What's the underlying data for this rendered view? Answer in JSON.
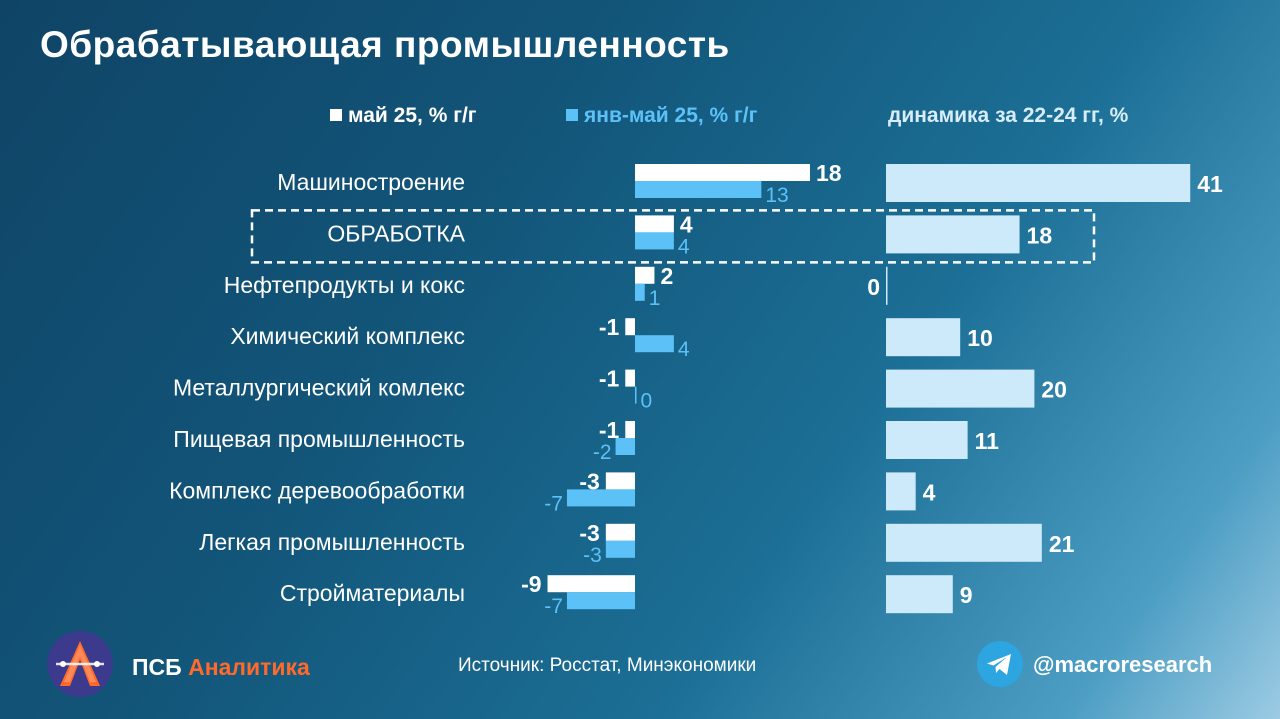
{
  "header": {
    "title": "Обрабатывающая промышленность"
  },
  "legend": {
    "series1": "май 25, % г/г",
    "series2": "янв-май 25, % г/г",
    "series3": "динамика за 22-24 гг, %"
  },
  "colors": {
    "series1": "#ffffff",
    "series2": "#5bc1f7",
    "series3": "#cdeafb",
    "highlight_box": "#ffffff",
    "brand_accent": "#ff6a2b"
  },
  "chart_data": {
    "type": "bar",
    "orientation": "horizontal",
    "categories": [
      "Машиностроение",
      "ОБРАБОТКА",
      "Нефтепродукты и кокс",
      "Химический комплекс",
      "Металлургический комлекс",
      "Пищевая промышленность",
      "Комплекс деревообработки",
      "Легкая промышленность",
      "Стройматериалы"
    ],
    "series": [
      {
        "name": "май 25, % г/г",
        "values": [
          18,
          4,
          2,
          -1,
          -1,
          -1,
          -3,
          -3,
          -9
        ]
      },
      {
        "name": "янв-май 25, % г/г",
        "values": [
          13,
          4,
          1,
          4,
          0,
          -2,
          -7,
          -3,
          -7
        ]
      },
      {
        "name": "динамика за 22-24 гг, %",
        "values": [
          41,
          18,
          0,
          10,
          20,
          11,
          4,
          21,
          9
        ]
      }
    ],
    "highlighted_category": "ОБРАБОТКА",
    "legend_position": "top"
  },
  "footer": {
    "brand_main": "ПСБ",
    "brand_accent": "Аналитика",
    "source": "Источник:  Росстат, Минэкономики",
    "telegram_handle": "@macroresearch",
    "logo_icon": "psb-logo-icon",
    "telegram_icon": "telegram-icon"
  }
}
